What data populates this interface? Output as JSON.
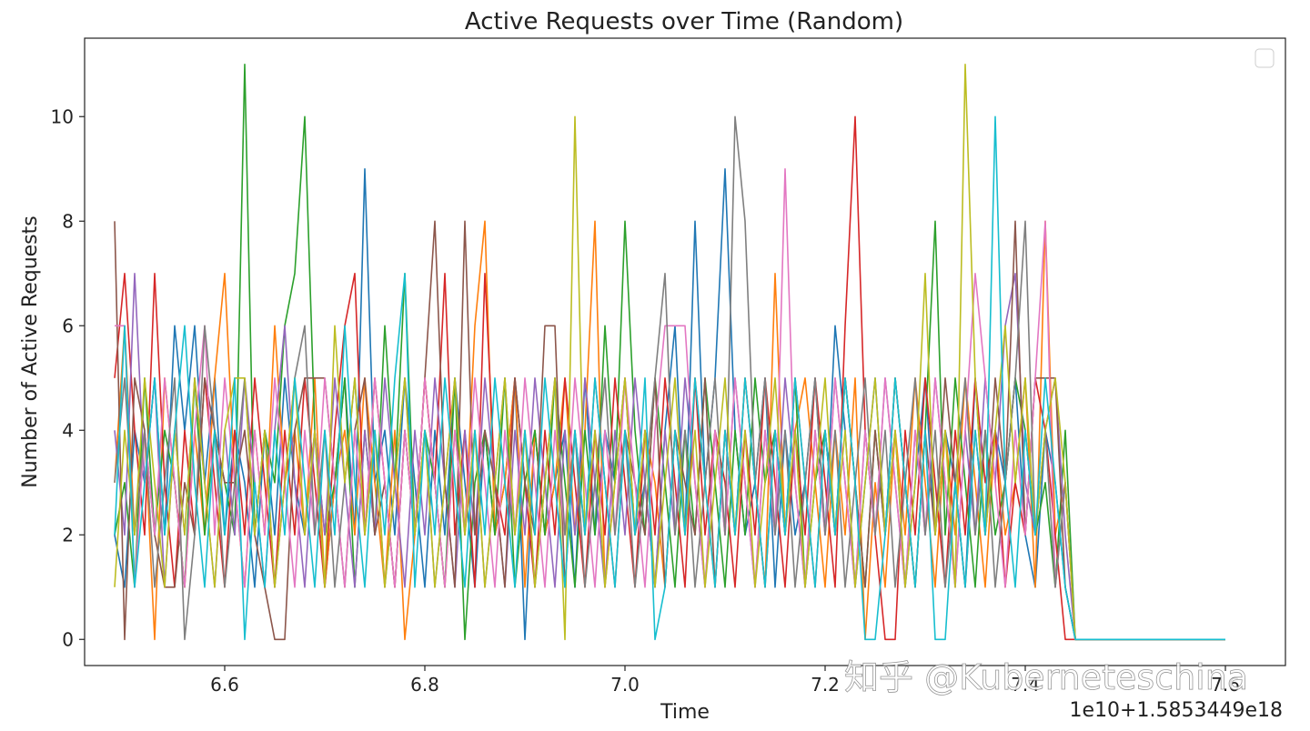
{
  "chart_data": {
    "type": "line",
    "title": "Active Requests over Time (Random)",
    "xlabel": "Time",
    "ylabel": "Number of Active Requests",
    "x_offset_label": "1e10+1.5853449e18",
    "xlim": [
      6.46,
      7.66
    ],
    "ylim": [
      -0.5,
      11.5
    ],
    "xticks": [
      6.6,
      6.8,
      7.0,
      7.2,
      7.4,
      7.6
    ],
    "xtick_labels": [
      "6.6",
      "6.8",
      "7.0",
      "7.2",
      "7.4",
      "7.6"
    ],
    "yticks": [
      0,
      2,
      4,
      6,
      8,
      10
    ],
    "ytick_labels": [
      "0",
      "2",
      "4",
      "6",
      "8",
      "10"
    ],
    "grid": false,
    "legend": "top-right (empty)",
    "x": [
      6.49,
      6.5,
      6.51,
      6.52,
      6.53,
      6.54,
      6.55,
      6.56,
      6.57,
      6.58,
      6.59,
      6.6,
      6.61,
      6.62,
      6.63,
      6.64,
      6.65,
      6.66,
      6.67,
      6.68,
      6.69,
      6.7,
      6.71,
      6.72,
      6.73,
      6.74,
      6.75,
      6.76,
      6.77,
      6.78,
      6.79,
      6.8,
      6.81,
      6.82,
      6.83,
      6.84,
      6.85,
      6.86,
      6.87,
      6.88,
      6.89,
      6.9,
      6.91,
      6.92,
      6.93,
      6.94,
      6.95,
      6.96,
      6.97,
      6.98,
      6.99,
      7.0,
      7.01,
      7.02,
      7.03,
      7.04,
      7.05,
      7.06,
      7.07,
      7.08,
      7.09,
      7.1,
      7.11,
      7.12,
      7.13,
      7.14,
      7.15,
      7.16,
      7.17,
      7.18,
      7.19,
      7.2,
      7.21,
      7.22,
      7.23,
      7.24,
      7.25,
      7.26,
      7.27,
      7.28,
      7.29,
      7.3,
      7.31,
      7.32,
      7.33,
      7.34,
      7.35,
      7.36,
      7.37,
      7.38,
      7.39,
      7.4,
      7.41,
      7.42,
      7.43,
      7.44,
      7.45,
      7.46,
      7.47,
      7.48,
      7.49,
      7.5,
      7.51,
      7.52,
      7.53,
      7.54,
      7.55,
      7.56,
      7.57,
      7.58,
      7.59,
      7.6
    ],
    "series": [
      {
        "color": "#1f77b4",
        "values": [
          2,
          1,
          4,
          3,
          5,
          2,
          6,
          4,
          6,
          3,
          5,
          2,
          4,
          3,
          1,
          4,
          2,
          5,
          3,
          2,
          4,
          1,
          3,
          5,
          2,
          9,
          3,
          4,
          2,
          5,
          3,
          1,
          4,
          2,
          5,
          3,
          1,
          4,
          2,
          3,
          5,
          0,
          4,
          2,
          3,
          4,
          1,
          5,
          2,
          4,
          3,
          5,
          2,
          3,
          1,
          4,
          6,
          2,
          8,
          3,
          5,
          9,
          4,
          2,
          3,
          5,
          1,
          4,
          2,
          3,
          5,
          2,
          6,
          4,
          1,
          3,
          5,
          2,
          4,
          1,
          3,
          5,
          2,
          4,
          3,
          1,
          5,
          2,
          4,
          3,
          5,
          2,
          1,
          4,
          3,
          1,
          0,
          0,
          0,
          0,
          0,
          0,
          0,
          0,
          0,
          0,
          0,
          0,
          0,
          0,
          0,
          0
        ]
      },
      {
        "color": "#ff7f0e",
        "values": [
          3,
          6,
          2,
          4,
          0,
          5,
          3,
          1,
          4,
          2,
          5,
          7,
          3,
          1,
          4,
          2,
          6,
          3,
          4,
          2,
          5,
          1,
          3,
          4,
          2,
          5,
          3,
          1,
          4,
          0,
          2,
          5,
          3,
          1,
          4,
          2,
          6,
          8,
          2,
          3,
          5,
          1,
          4,
          2,
          3,
          5,
          2,
          4,
          8,
          1,
          3,
          5,
          2,
          4,
          3,
          1,
          4,
          2,
          5,
          3,
          1,
          4,
          2,
          5,
          3,
          1,
          7,
          2,
          4,
          5,
          3,
          1,
          4,
          2,
          5,
          0,
          3,
          1,
          4,
          2,
          5,
          3,
          1,
          4,
          2,
          5,
          3,
          1,
          4,
          2,
          3,
          5,
          1,
          8,
          2,
          3,
          0,
          0,
          0,
          0,
          0,
          0,
          0,
          0,
          0,
          0,
          0,
          0,
          0,
          0,
          0,
          0
        ]
      },
      {
        "color": "#2ca02c",
        "values": [
          2,
          3,
          1,
          5,
          2,
          4,
          3,
          1,
          5,
          2,
          4,
          3,
          2,
          11,
          2,
          4,
          3,
          6,
          7,
          10,
          4,
          2,
          3,
          5,
          1,
          4,
          2,
          6,
          3,
          7,
          2,
          4,
          3,
          1,
          5,
          0,
          3,
          4,
          2,
          5,
          1,
          3,
          4,
          2,
          5,
          3,
          1,
          4,
          2,
          6,
          3,
          8,
          4,
          2,
          5,
          3,
          1,
          4,
          2,
          5,
          3,
          1,
          4,
          2,
          5,
          3,
          4,
          2,
          5,
          1,
          3,
          4,
          2,
          5,
          3,
          1,
          4,
          2,
          5,
          3,
          1,
          4,
          8,
          2,
          5,
          3,
          1,
          4,
          2,
          3,
          5,
          4,
          2,
          3,
          1,
          4,
          0,
          0,
          0,
          0,
          0,
          0,
          0,
          0,
          0,
          0,
          0,
          0,
          0,
          0,
          0,
          0
        ]
      },
      {
        "color": "#d62728",
        "values": [
          5,
          7,
          4,
          2,
          7,
          3,
          1,
          4,
          2,
          5,
          3,
          1,
          4,
          2,
          5,
          3,
          1,
          4,
          2,
          5,
          3,
          1,
          4,
          6,
          7,
          2,
          5,
          3,
          1,
          4,
          2,
          5,
          3,
          7,
          2,
          4,
          1,
          7,
          3,
          2,
          5,
          3,
          1,
          4,
          2,
          5,
          3,
          1,
          4,
          2,
          5,
          3,
          1,
          4,
          2,
          5,
          3,
          1,
          5,
          2,
          4,
          3,
          1,
          4,
          2,
          5,
          3,
          1,
          4,
          2,
          5,
          3,
          1,
          6,
          10,
          4,
          2,
          0,
          0,
          4,
          2,
          5,
          3,
          1,
          4,
          2,
          5,
          3,
          4,
          1,
          3,
          2,
          5,
          4,
          2,
          0,
          0,
          0,
          0,
          0,
          0,
          0,
          0,
          0,
          0,
          0,
          0,
          0,
          0,
          0,
          0,
          0
        ]
      },
      {
        "color": "#9467bd",
        "values": [
          4,
          2,
          7,
          3,
          5,
          1,
          4,
          2,
          5,
          3,
          1,
          4,
          2,
          5,
          3,
          1,
          4,
          6,
          3,
          1,
          4,
          2,
          5,
          3,
          1,
          4,
          2,
          5,
          3,
          1,
          4,
          2,
          5,
          3,
          1,
          4,
          2,
          5,
          3,
          1,
          4,
          2,
          5,
          3,
          1,
          4,
          2,
          5,
          3,
          1,
          4,
          2,
          5,
          3,
          1,
          4,
          2,
          5,
          3,
          1,
          4,
          2,
          5,
          3,
          1,
          4,
          2,
          5,
          3,
          1,
          4,
          2,
          5,
          3,
          1,
          4,
          2,
          5,
          3,
          1,
          4,
          2,
          5,
          3,
          1,
          4,
          2,
          5,
          3,
          6,
          7,
          3,
          2,
          4,
          5,
          2,
          0,
          0,
          0,
          0,
          0,
          0,
          0,
          0,
          0,
          0,
          0,
          0,
          0,
          0,
          0,
          0
        ]
      },
      {
        "color": "#8c564b",
        "values": [
          8,
          0,
          5,
          4,
          2,
          1,
          1,
          3,
          2,
          5,
          4,
          3,
          3,
          4,
          2,
          1,
          0,
          0,
          4,
          5,
          5,
          5,
          3,
          1,
          4,
          5,
          2,
          3,
          1,
          4,
          2,
          5,
          8,
          3,
          1,
          8,
          2,
          4,
          3,
          1,
          5,
          3,
          2,
          6,
          6,
          1,
          4,
          2,
          5,
          3,
          1,
          4,
          3,
          2,
          5,
          1,
          4,
          3,
          2,
          5,
          1,
          4,
          2,
          5,
          3,
          1,
          4,
          2,
          5,
          3,
          1,
          4,
          2,
          5,
          3,
          1,
          4,
          2,
          5,
          3,
          1,
          4,
          2,
          5,
          3,
          1,
          4,
          2,
          5,
          3,
          8,
          2,
          5,
          5,
          5,
          1,
          0,
          0,
          0,
          0,
          0,
          0,
          0,
          0,
          0,
          0,
          0,
          0,
          0,
          0,
          0,
          0
        ]
      },
      {
        "color": "#e377c2",
        "values": [
          6,
          6,
          1,
          4,
          2,
          5,
          3,
          1,
          4,
          6,
          2,
          5,
          3,
          1,
          4,
          2,
          5,
          3,
          1,
          4,
          2,
          5,
          3,
          1,
          4,
          2,
          5,
          3,
          1,
          4,
          2,
          5,
          3,
          1,
          4,
          2,
          5,
          3,
          1,
          4,
          2,
          5,
          3,
          1,
          4,
          2,
          5,
          3,
          1,
          4,
          2,
          5,
          3,
          1,
          4,
          6,
          6,
          6,
          3,
          1,
          4,
          2,
          5,
          3,
          1,
          4,
          2,
          9,
          3,
          1,
          4,
          2,
          5,
          3,
          1,
          4,
          2,
          5,
          3,
          1,
          4,
          2,
          5,
          3,
          1,
          4,
          7,
          5,
          3,
          1,
          4,
          2,
          5,
          8,
          1,
          3,
          0,
          0,
          0,
          0,
          0,
          0,
          0,
          0,
          0,
          0,
          0,
          0,
          0,
          0,
          0,
          0
        ]
      },
      {
        "color": "#7f7f7f",
        "values": [
          3,
          5,
          2,
          4,
          1,
          3,
          5,
          0,
          2,
          6,
          4,
          1,
          3,
          5,
          2,
          4,
          1,
          3,
          5,
          6,
          2,
          4,
          1,
          3,
          5,
          2,
          4,
          1,
          3,
          5,
          2,
          4,
          1,
          3,
          5,
          2,
          4,
          1,
          3,
          5,
          2,
          4,
          1,
          3,
          5,
          2,
          4,
          1,
          3,
          5,
          2,
          4,
          1,
          3,
          5,
          7,
          2,
          4,
          1,
          3,
          5,
          2,
          10,
          8,
          3,
          5,
          2,
          4,
          1,
          3,
          5,
          2,
          4,
          1,
          3,
          5,
          2,
          4,
          1,
          3,
          5,
          2,
          4,
          1,
          3,
          5,
          2,
          4,
          1,
          3,
          5,
          8,
          2,
          4,
          1,
          3,
          0,
          0,
          0,
          0,
          0,
          0,
          0,
          0,
          0,
          0,
          0,
          0,
          0,
          0,
          0,
          0
        ]
      },
      {
        "color": "#bcbd22",
        "values": [
          1,
          4,
          2,
          5,
          3,
          1,
          4,
          2,
          5,
          3,
          1,
          4,
          5,
          5,
          2,
          4,
          1,
          3,
          5,
          2,
          4,
          1,
          6,
          3,
          5,
          2,
          4,
          1,
          3,
          5,
          2,
          4,
          1,
          3,
          5,
          2,
          4,
          1,
          3,
          5,
          2,
          4,
          1,
          3,
          5,
          0,
          10,
          2,
          4,
          1,
          3,
          5,
          2,
          4,
          1,
          3,
          5,
          2,
          4,
          1,
          3,
          5,
          2,
          4,
          1,
          3,
          5,
          2,
          4,
          1,
          3,
          5,
          2,
          4,
          1,
          3,
          5,
          2,
          4,
          1,
          3,
          7,
          2,
          4,
          1,
          11,
          5,
          2,
          4,
          6,
          3,
          5,
          2,
          4,
          5,
          3,
          0,
          0,
          0,
          0,
          0,
          0,
          0,
          0,
          0,
          0,
          0,
          0,
          0,
          0,
          0,
          0
        ]
      },
      {
        "color": "#17becf",
        "values": [
          2,
          6,
          1,
          3,
          5,
          2,
          4,
          6,
          3,
          1,
          4,
          2,
          5,
          0,
          3,
          1,
          4,
          2,
          5,
          3,
          1,
          4,
          2,
          6,
          3,
          1,
          4,
          2,
          5,
          7,
          1,
          4,
          2,
          5,
          3,
          1,
          4,
          2,
          5,
          3,
          1,
          4,
          2,
          5,
          3,
          1,
          4,
          2,
          5,
          3,
          1,
          4,
          2,
          5,
          0,
          1,
          4,
          2,
          5,
          3,
          1,
          4,
          2,
          5,
          3,
          1,
          4,
          2,
          5,
          3,
          1,
          4,
          2,
          5,
          3,
          0,
          0,
          2,
          5,
          3,
          1,
          4,
          0,
          0,
          3,
          1,
          4,
          2,
          10,
          3,
          1,
          4,
          2,
          5,
          3,
          1,
          0,
          0,
          0,
          0,
          0,
          0,
          0,
          0,
          0,
          0,
          0,
          0,
          0,
          0,
          0,
          0
        ]
      }
    ]
  },
  "watermark": "知乎 @Kuberneteschina"
}
